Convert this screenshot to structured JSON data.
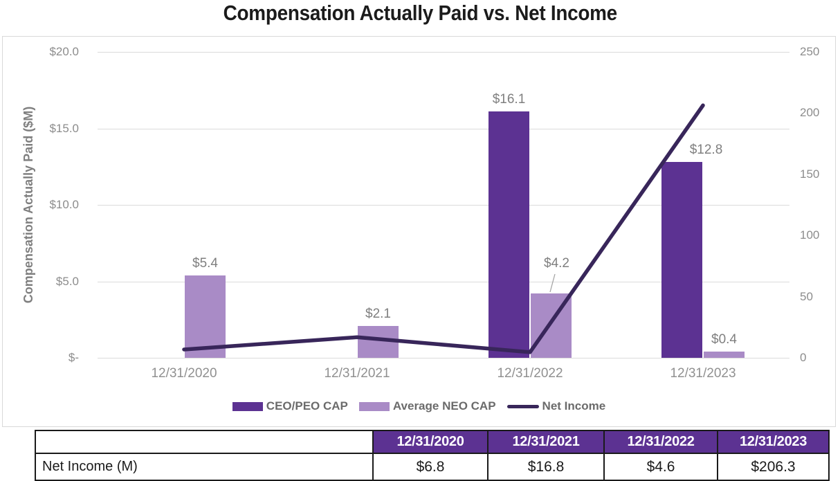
{
  "title": "Compensation Actually Paid vs. Net Income",
  "colors": {
    "ceo_peo_cap": "#5C3292",
    "average_neo_cap": "#A98BC6",
    "net_income_line": "#38265A",
    "grid": "#DBDBDB",
    "axis_text": "#8C8C8C",
    "table_header_bg": "#5C3292",
    "table_header_text": "#FFFFFF",
    "table_border": "#1A1A1A"
  },
  "chart_data": {
    "type": "bar+line combo",
    "title": "Compensation Actually Paid vs. Net Income",
    "categories": [
      "12/31/2020",
      "12/31/2021",
      "12/31/2022",
      "12/31/2023"
    ],
    "series": [
      {
        "name": "CEO/PEO CAP",
        "type": "bar",
        "axis": "left",
        "color": "#5C3292",
        "values": [
          null,
          null,
          16.1,
          12.8
        ],
        "data_labels": [
          null,
          null,
          "$16.1",
          "$12.8"
        ]
      },
      {
        "name": "Average NEO CAP",
        "type": "bar",
        "axis": "left",
        "color": "#A98BC6",
        "values": [
          5.4,
          2.1,
          4.2,
          0.4
        ],
        "data_labels": [
          "$5.4",
          "$2.1",
          "$4.2",
          "$0.4"
        ]
      },
      {
        "name": "Net Income",
        "type": "line",
        "axis": "right",
        "color": "#38265A",
        "values": [
          6.8,
          16.8,
          4.6,
          206.3
        ]
      }
    ],
    "left_axis": {
      "title": "Compensation Actually Paid ($M)",
      "tick_labels": [
        "$20.0",
        "$15.0",
        "$10.0",
        "$5.0",
        "$-"
      ],
      "min": 0,
      "max": 20
    },
    "right_axis": {
      "tick_labels": [
        "250",
        "200",
        "150",
        "100",
        "50",
        "0"
      ],
      "min": 0,
      "max": 250
    },
    "grid": "horizontal",
    "legend_position": "bottom"
  },
  "legend": [
    {
      "label": "CEO/PEO CAP",
      "swatch": "bar",
      "color": "#5C3292"
    },
    {
      "label": "Average NEO CAP",
      "swatch": "bar",
      "color": "#A98BC6"
    },
    {
      "label": "Net Income",
      "swatch": "line",
      "color": "#38265A"
    }
  ],
  "table": {
    "header_row": [
      "",
      "12/31/2020",
      "12/31/2021",
      "12/31/2022",
      "12/31/2023"
    ],
    "rows": [
      {
        "label": "Net Income (M)",
        "values": [
          "$6.8",
          "$16.8",
          "$4.6",
          "$206.3"
        ]
      }
    ]
  }
}
